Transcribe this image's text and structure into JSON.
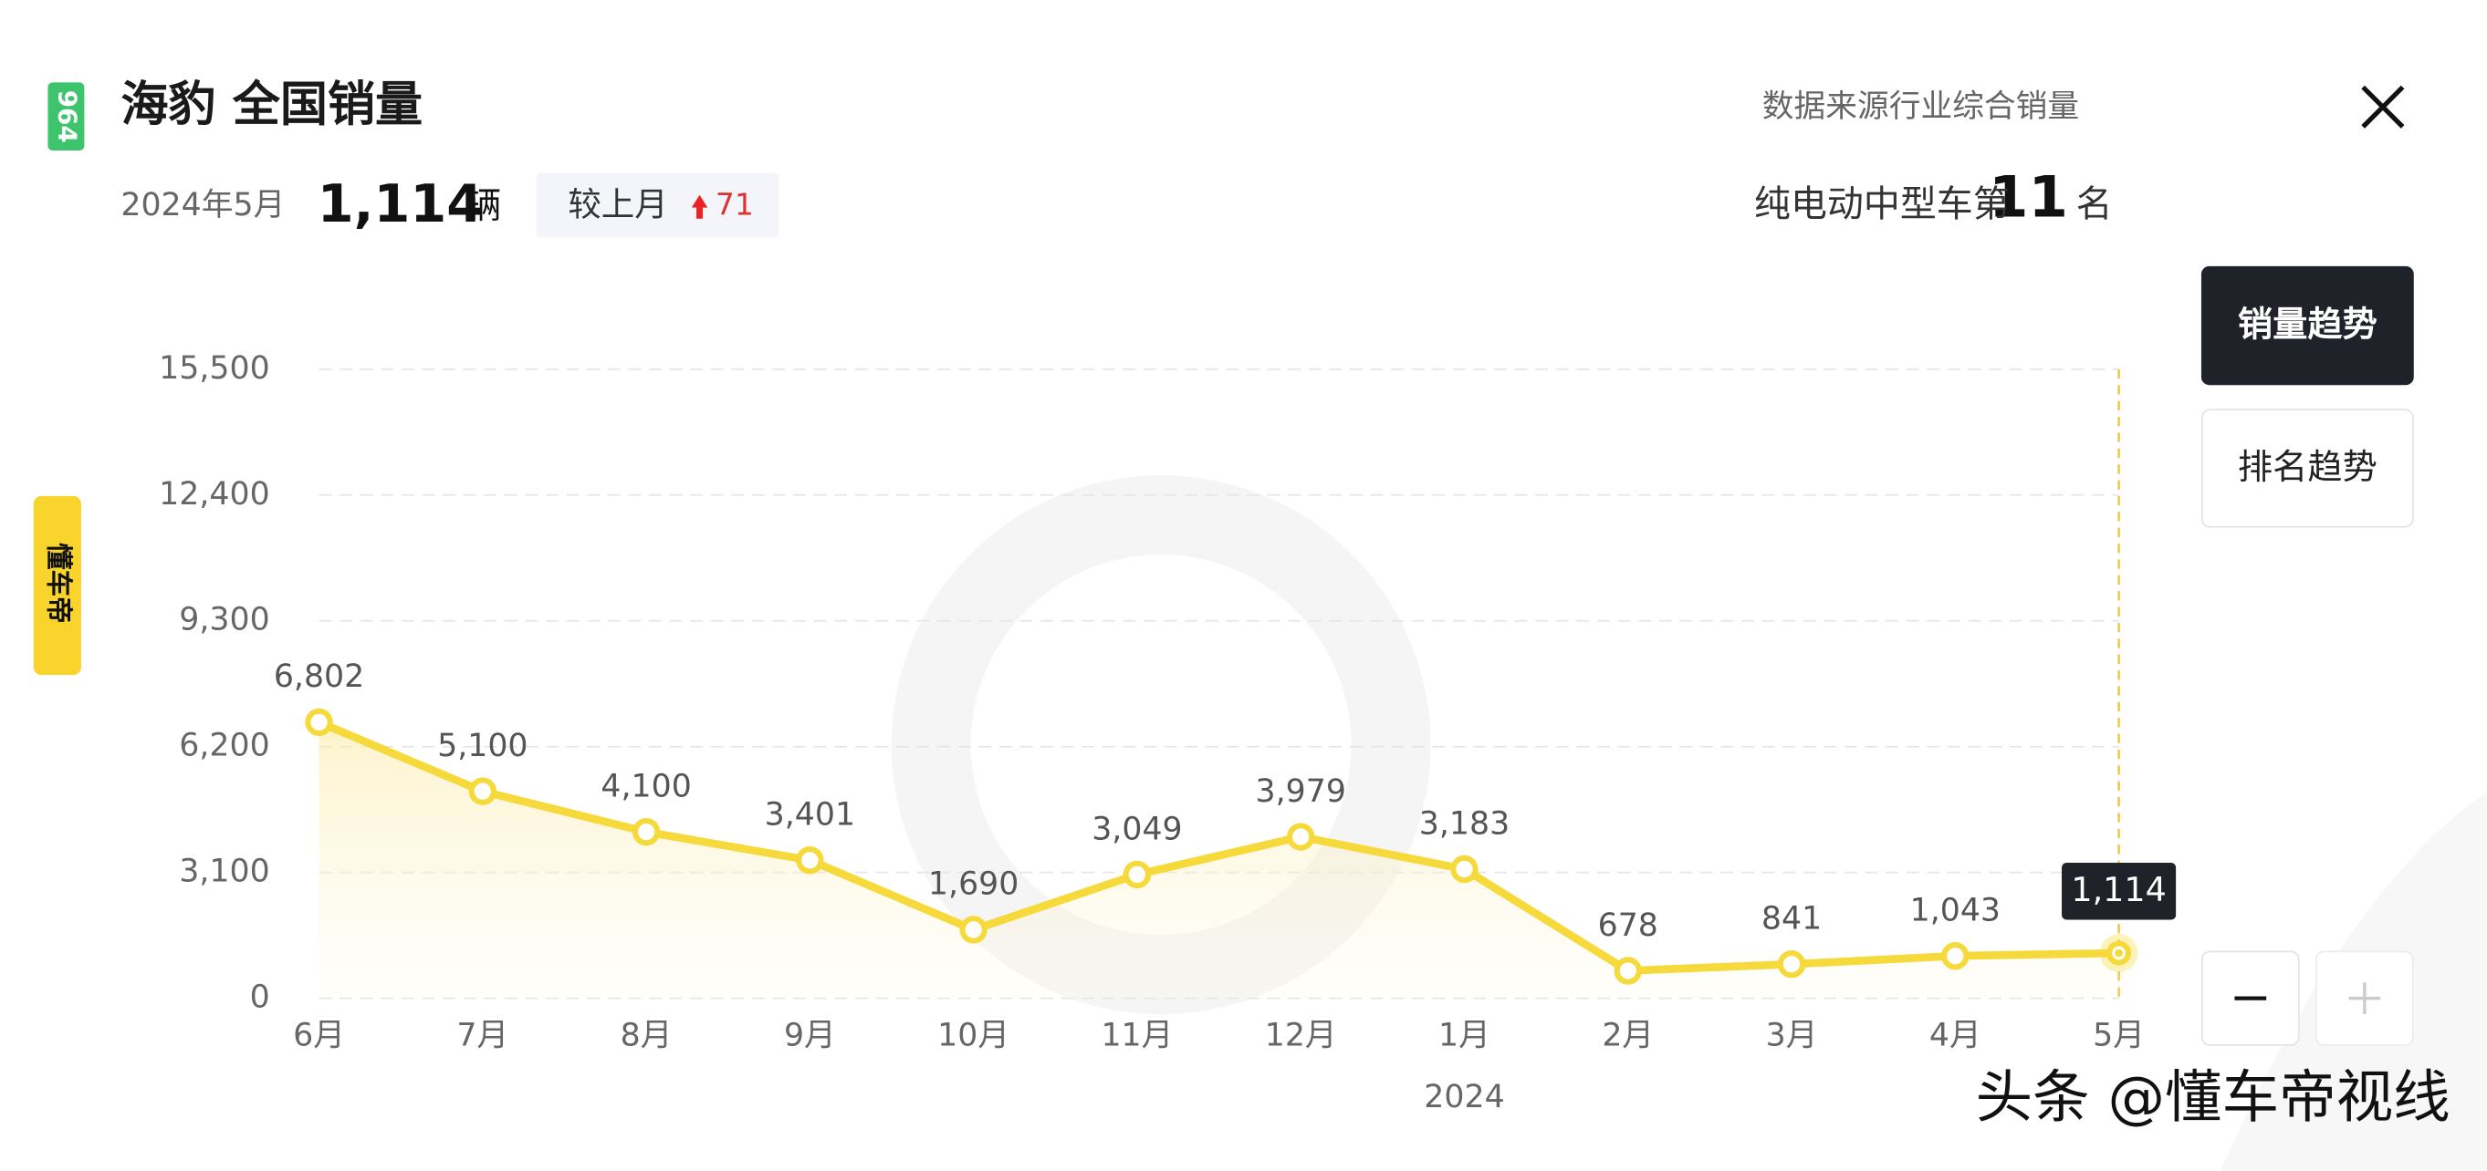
{
  "header": {
    "badge": "964",
    "title": "海豹 全国销量",
    "source": "数据来源行业综合销量"
  },
  "summary": {
    "period": "2024年5月",
    "sales": "1,114",
    "unit": "辆",
    "mom_label": "较上月",
    "mom_change": "71"
  },
  "ranking": {
    "prefix": "纯电动中型车第",
    "rank": "11",
    "suffix": "名"
  },
  "buttons": [
    "销量趋势",
    "排名趋势"
  ],
  "side_label": "懂车帝",
  "watermark": "头条 @懂车帝视线",
  "chart_data": {
    "type": "line",
    "categories": [
      "6月",
      "7月",
      "8月",
      "9月",
      "10月",
      "11月",
      "12月",
      "1月",
      "2月",
      "3月",
      "4月",
      "5月"
    ],
    "x_group_label": "2024",
    "values": [
      6802,
      5100,
      4100,
      3401,
      1690,
      3049,
      3979,
      3183,
      678,
      841,
      1043,
      1114
    ],
    "value_labels": [
      "6,802",
      "5,100",
      "4,100",
      "3,401",
      "1,690",
      "3,049",
      "3,979",
      "3,183",
      "678",
      "841",
      "1,043",
      "1,114"
    ],
    "color": "#f6d93a",
    "ylim": [
      0,
      15500
    ],
    "yticks": [
      0,
      {
        "value": 3100,
        "label": "3,100"
      },
      {
        "value": 6200,
        "label": "6,200"
      },
      {
        "value": 9300,
        "label": "9,300"
      },
      {
        "value": 12400,
        "label": "12,400"
      },
      {
        "value": 15500,
        "label": "15,500"
      }
    ],
    "grid": true
  }
}
